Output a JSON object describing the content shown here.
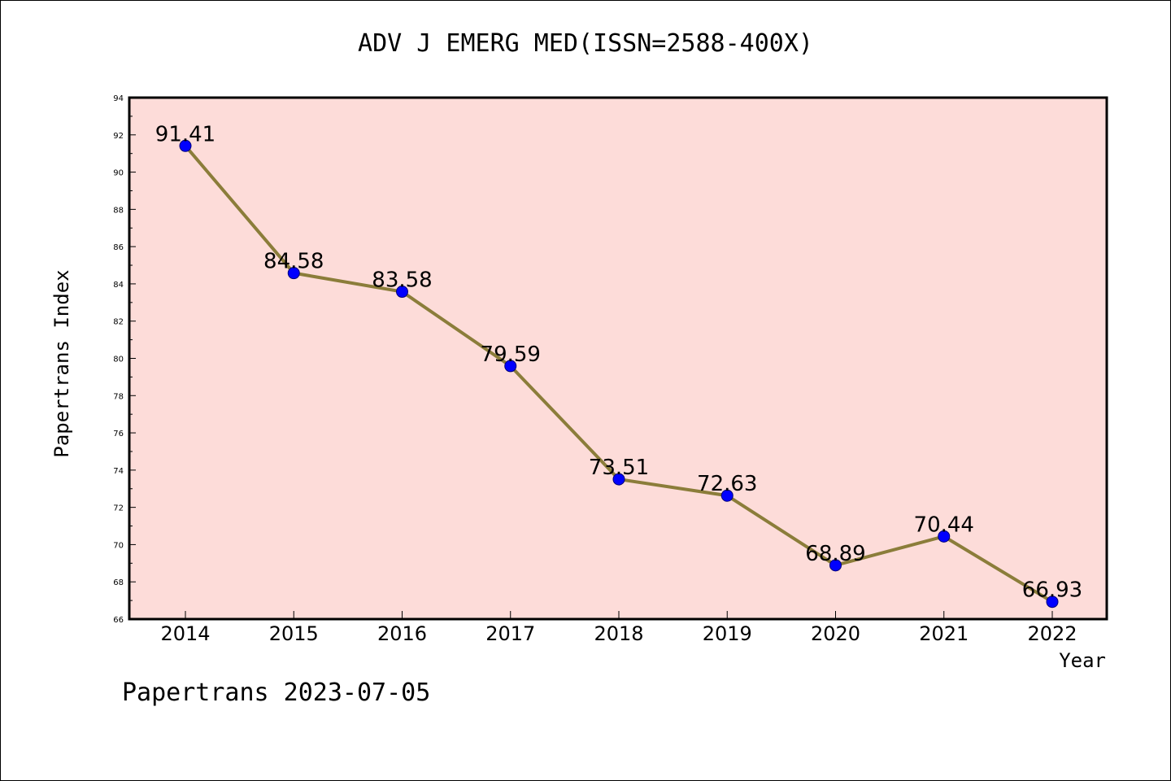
{
  "chart_data": {
    "type": "line",
    "title": "ADV J EMERG MED(ISSN=2588-400X)",
    "xlabel": "Year",
    "ylabel": "Papertrans Index",
    "categories": [
      "2014",
      "2015",
      "2016",
      "2017",
      "2018",
      "2019",
      "2020",
      "2021",
      "2022"
    ],
    "values": [
      91.41,
      84.58,
      83.58,
      79.59,
      73.51,
      72.63,
      68.89,
      70.44,
      66.93
    ],
    "data_labels": [
      "91.41",
      "84.58",
      "83.58",
      "79.59",
      "73.51",
      "72.63",
      "68.89",
      "70.44",
      "66.93"
    ],
    "ylim": [
      66,
      94
    ],
    "y_ticks": [
      "66",
      "68",
      "70",
      "72",
      "74",
      "76",
      "78",
      "80",
      "82",
      "84",
      "86",
      "88",
      "90",
      "92",
      "94"
    ],
    "grid": false,
    "colors": {
      "plot_background": "#fddcd9",
      "line": "#8b7d3a",
      "marker": "#0000ff"
    }
  },
  "footer": "Papertrans 2023-07-05"
}
